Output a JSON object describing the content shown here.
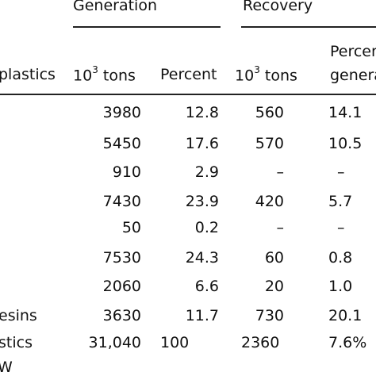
{
  "header": {
    "generation": "Generation",
    "recovery": "Recovery",
    "col_label": "plastics",
    "gen_tons_pre": "10",
    "gen_tons_exp": "3",
    "gen_tons_post": " tons",
    "gen_percent": "Percent",
    "rec_tons_pre": "10",
    "rec_tons_exp": "3",
    "rec_tons_post": " tons",
    "rec_percent_1": "Percen",
    "rec_percent_2": "genera"
  },
  "rows": [
    {
      "label": "",
      "gen_tons": "3980",
      "gen_pct": "12.8",
      "rec_tons": "560",
      "rec_pct": "14.1"
    },
    {
      "label": "",
      "gen_tons": "5450",
      "gen_pct": "17.6",
      "rec_tons": "570",
      "rec_pct": "10.5"
    },
    {
      "label": "",
      "gen_tons": "910",
      "gen_pct": "2.9",
      "rec_tons": "–",
      "rec_pct": "–"
    },
    {
      "label": "",
      "gen_tons": "7430",
      "gen_pct": "23.9",
      "rec_tons": "420",
      "rec_pct": "5.7"
    },
    {
      "label": "",
      "gen_tons": "50",
      "gen_pct": "0.2",
      "rec_tons": "–",
      "rec_pct": "–"
    },
    {
      "label": "",
      "gen_tons": "7530",
      "gen_pct": "24.3",
      "rec_tons": "60",
      "rec_pct": "0.8"
    },
    {
      "label": "",
      "gen_tons": "2060",
      "gen_pct": "6.6",
      "rec_tons": "20",
      "rec_pct": "1.0"
    },
    {
      "label": "esins",
      "gen_tons": "3630",
      "gen_pct": "11.7",
      "rec_tons": "730",
      "rec_pct": "20.1"
    },
    {
      "label": "stics",
      "gen_tons": "31,040",
      "gen_pct": "100",
      "rec_tons": "2360",
      "rec_pct": "7.6%"
    }
  ],
  "footer_fragment": "W"
}
